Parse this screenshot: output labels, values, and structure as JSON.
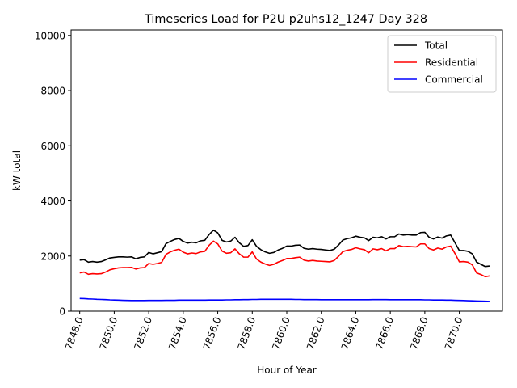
{
  "chart_data": {
    "type": "line",
    "title": "Timeseries Load for P2U p2uhs12_1247  Day 328",
    "xlabel": "Hour of Year",
    "ylabel": "kW total",
    "xlim": [
      7847.5,
      7872.5
    ],
    "ylim": [
      0,
      10200
    ],
    "xticks": [
      7848,
      7850,
      7852,
      7854,
      7856,
      7858,
      7860,
      7862,
      7864,
      7866,
      7868,
      7870
    ],
    "xtick_labels": [
      "7848.0",
      "7850.0",
      "7852.0",
      "7854.0",
      "7856.0",
      "7858.0",
      "7860.0",
      "7862.0",
      "7864.0",
      "7866.0",
      "7868.0",
      "7870.0"
    ],
    "yticks": [
      0,
      2000,
      4000,
      6000,
      8000,
      10000
    ],
    "ytick_labels": [
      "0",
      "2000",
      "4000",
      "6000",
      "8000",
      "10000"
    ],
    "legend_position": "top-right",
    "x": [
      7848.0,
      7848.25,
      7848.5,
      7848.75,
      7849.0,
      7849.25,
      7849.5,
      7849.75,
      7850.0,
      7850.25,
      7850.5,
      7850.75,
      7851.0,
      7851.25,
      7851.5,
      7851.75,
      7852.0,
      7852.25,
      7852.5,
      7852.75,
      7853.0,
      7853.25,
      7853.5,
      7853.75,
      7854.0,
      7854.25,
      7854.5,
      7854.75,
      7855.0,
      7855.25,
      7855.5,
      7855.75,
      7856.0,
      7856.25,
      7856.5,
      7856.75,
      7857.0,
      7857.25,
      7857.5,
      7857.75,
      7858.0,
      7858.25,
      7858.5,
      7858.75,
      7859.0,
      7859.25,
      7859.5,
      7859.75,
      7860.0,
      7860.25,
      7860.5,
      7860.75,
      7861.0,
      7861.25,
      7861.5,
      7861.75,
      7862.0,
      7862.25,
      7862.5,
      7862.75,
      7863.0,
      7863.25,
      7863.5,
      7863.75,
      7864.0,
      7864.25,
      7864.5,
      7864.75,
      7865.0,
      7865.25,
      7865.5,
      7865.75,
      7866.0,
      7866.25,
      7866.5,
      7866.75,
      7867.0,
      7867.25,
      7867.5,
      7867.75,
      7868.0,
      7868.25,
      7868.5,
      7868.75,
      7869.0,
      7869.25,
      7869.5,
      7869.75,
      7870.0,
      7870.25,
      7870.5,
      7870.75,
      7871.0,
      7871.25,
      7871.5,
      7871.75
    ],
    "series": [
      {
        "name": "Total",
        "color": "#000000",
        "values": [
          1850,
          1870,
          1780,
          1800,
          1780,
          1800,
          1860,
          1930,
          1950,
          1970,
          1970,
          1960,
          1970,
          1900,
          1950,
          1970,
          2130,
          2080,
          2120,
          2160,
          2450,
          2530,
          2600,
          2640,
          2530,
          2470,
          2500,
          2480,
          2550,
          2570,
          2780,
          2940,
          2840,
          2570,
          2510,
          2540,
          2680,
          2480,
          2350,
          2380,
          2590,
          2350,
          2230,
          2150,
          2100,
          2130,
          2220,
          2280,
          2360,
          2360,
          2390,
          2400,
          2280,
          2250,
          2270,
          2250,
          2240,
          2220,
          2200,
          2250,
          2400,
          2580,
          2630,
          2660,
          2720,
          2680,
          2660,
          2560,
          2680,
          2660,
          2700,
          2620,
          2700,
          2700,
          2800,
          2760,
          2780,
          2760,
          2760,
          2850,
          2860,
          2680,
          2620,
          2690,
          2650,
          2730,
          2760,
          2480,
          2200,
          2200,
          2170,
          2080,
          1780,
          1700,
          1620,
          1640
        ]
      },
      {
        "name": "Residential",
        "color": "#ff0000",
        "values": [
          1390,
          1420,
          1340,
          1360,
          1350,
          1360,
          1420,
          1500,
          1540,
          1570,
          1580,
          1580,
          1590,
          1530,
          1570,
          1580,
          1730,
          1700,
          1730,
          1770,
          2060,
          2150,
          2210,
          2250,
          2140,
          2080,
          2110,
          2090,
          2150,
          2170,
          2390,
          2540,
          2440,
          2180,
          2100,
          2120,
          2260,
          2080,
          1960,
          1960,
          2150,
          1890,
          1780,
          1710,
          1660,
          1700,
          1780,
          1840,
          1910,
          1910,
          1940,
          1960,
          1850,
          1820,
          1840,
          1820,
          1810,
          1800,
          1790,
          1840,
          1990,
          2160,
          2210,
          2240,
          2300,
          2260,
          2230,
          2120,
          2260,
          2230,
          2270,
          2190,
          2270,
          2270,
          2380,
          2340,
          2350,
          2340,
          2330,
          2440,
          2440,
          2270,
          2220,
          2290,
          2250,
          2330,
          2360,
          2090,
          1790,
          1800,
          1780,
          1680,
          1390,
          1330,
          1250,
          1280
        ]
      },
      {
        "name": "Commercial",
        "color": "#0000ff",
        "values": [
          460,
          455,
          445,
          440,
          430,
          425,
          420,
          410,
          405,
          400,
          395,
          390,
          385,
          385,
          385,
          385,
          390,
          390,
          390,
          390,
          395,
          395,
          395,
          400,
          400,
          400,
          400,
          400,
          400,
          400,
          405,
          405,
          405,
          405,
          410,
          410,
          415,
          415,
          420,
          420,
          425,
          425,
          430,
          430,
          430,
          430,
          430,
          430,
          430,
          430,
          425,
          425,
          420,
          420,
          420,
          420,
          415,
          415,
          415,
          415,
          415,
          415,
          415,
          415,
          415,
          415,
          415,
          415,
          420,
          420,
          420,
          420,
          415,
          415,
          415,
          415,
          415,
          415,
          415,
          415,
          410,
          410,
          405,
          405,
          405,
          400,
          400,
          395,
          390,
          385,
          380,
          375,
          370,
          365,
          360,
          355
        ]
      }
    ]
  }
}
